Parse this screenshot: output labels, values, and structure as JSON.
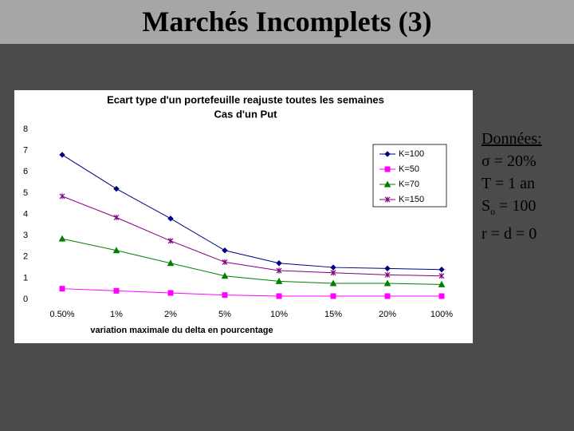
{
  "slide": {
    "title": "Marchés Incomplets (3)",
    "notes": [
      {
        "text": "Données:"
      },
      {
        "text": "σ = 20%"
      },
      {
        "text": "T = 1 an"
      },
      {
        "text": "S",
        "subscript": "o",
        "suffix": " = 100"
      },
      {
        "text": "r = d = 0"
      }
    ]
  },
  "chart_data": {
    "type": "line",
    "title": "Ecart type d'un portefeuille reajuste toutes les semaines",
    "subtitle": "Cas d'un Put",
    "x_label": "variation maximale du delta en pourcentage",
    "categories": [
      "0.50%",
      "1%",
      "2%",
      "5%",
      "10%",
      "15%",
      "20%",
      "100%"
    ],
    "ylim": [
      0,
      8
    ],
    "yticks": [
      0,
      1,
      2,
      3,
      4,
      5,
      6,
      7,
      8
    ],
    "grid": false,
    "legend": "upper right",
    "series": [
      {
        "name": "K=100",
        "color": "#000080",
        "marker": "diamond",
        "values": [
          6.8,
          5.2,
          3.8,
          2.3,
          1.7,
          1.5,
          1.45,
          1.4
        ]
      },
      {
        "name": "K=50",
        "color": "#ff00ff",
        "marker": "square",
        "values": [
          0.5,
          0.4,
          0.3,
          0.2,
          0.15,
          0.15,
          0.15,
          0.15
        ]
      },
      {
        "name": "K=70",
        "color": "#008000",
        "marker": "triangle",
        "values": [
          2.85,
          2.3,
          1.7,
          1.1,
          0.85,
          0.75,
          0.75,
          0.7
        ]
      },
      {
        "name": "K=150",
        "color": "#800080",
        "marker": "star",
        "values": [
          4.85,
          3.85,
          2.75,
          1.75,
          1.35,
          1.25,
          1.15,
          1.1
        ]
      }
    ]
  }
}
